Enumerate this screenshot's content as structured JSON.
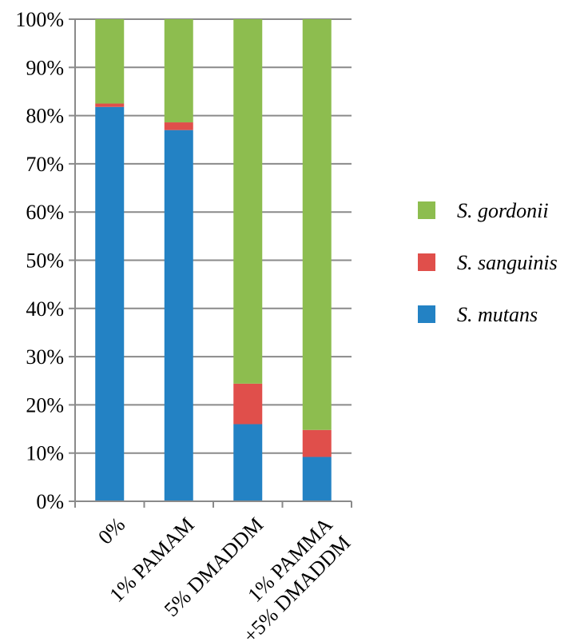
{
  "chart_data": {
    "type": "bar",
    "stacked": true,
    "categories": [
      [
        "0%"
      ],
      [
        "1% PAMAM"
      ],
      [
        "5% DMADDM"
      ],
      [
        "1% PAMMA",
        "+5% DMADDM"
      ]
    ],
    "series": [
      {
        "name": "S. mutans",
        "color": "#2382c4",
        "values": [
          81.8,
          77.0,
          16.0,
          9.2
        ]
      },
      {
        "name": "S. sanguinis",
        "color": "#e04f4b",
        "values": [
          0.7,
          1.6,
          8.4,
          5.6
        ]
      },
      {
        "name": "S. gordonii",
        "color": "#8dbd4f",
        "values": [
          17.5,
          21.4,
          75.6,
          85.2
        ]
      }
    ],
    "ylim": [
      0,
      100
    ],
    "yticks": [
      "0%",
      "10%",
      "20%",
      "30%",
      "40%",
      "50%",
      "60%",
      "70%",
      "80%",
      "90%",
      "100%"
    ],
    "grid": true,
    "legend_position": "right",
    "legend_order": [
      "S. gordonii",
      "S. sanguinis",
      "S. mutans"
    ]
  }
}
